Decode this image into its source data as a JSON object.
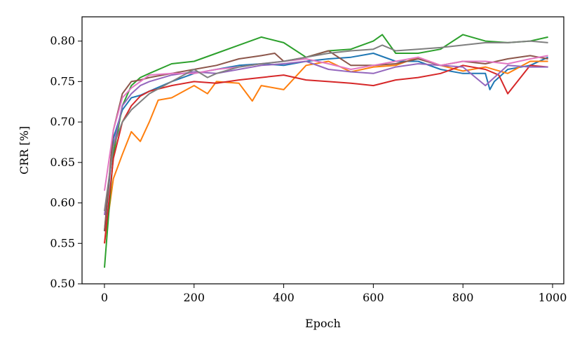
{
  "chart_data": {
    "type": "line",
    "xlabel": "Epoch",
    "ylabel": "CRR [%]",
    "xlim": [
      -50,
      1025
    ],
    "ylim": [
      0.5,
      0.83
    ],
    "xticks": [
      0,
      200,
      400,
      600,
      800,
      1000
    ],
    "yticks": [
      0.5,
      0.55,
      0.6,
      0.65,
      0.7,
      0.75,
      0.8
    ],
    "xtick_labels": [
      "0",
      "200",
      "400",
      "600",
      "800",
      "1000"
    ],
    "ytick_labels": [
      "0.50",
      "0.55",
      "0.60",
      "0.65",
      "0.70",
      "0.75",
      "0.80"
    ],
    "grid": false,
    "legend": "none",
    "series": [
      {
        "color": "#1f77b4",
        "x": [
          0,
          20,
          40,
          60,
          80,
          100,
          150,
          200,
          250,
          300,
          350,
          400,
          450,
          500,
          550,
          600,
          650,
          700,
          750,
          800,
          850,
          860,
          870,
          900,
          950,
          990
        ],
        "y": [
          0.565,
          0.68,
          0.715,
          0.73,
          0.733,
          0.738,
          0.75,
          0.76,
          0.765,
          0.77,
          0.772,
          0.77,
          0.775,
          0.778,
          0.78,
          0.785,
          0.775,
          0.775,
          0.765,
          0.76,
          0.76,
          0.74,
          0.75,
          0.765,
          0.77,
          0.78
        ]
      },
      {
        "color": "#ff7f0e",
        "x": [
          0,
          20,
          40,
          60,
          80,
          100,
          120,
          150,
          200,
          230,
          250,
          300,
          330,
          350,
          400,
          450,
          500,
          550,
          600,
          650,
          700,
          750,
          800,
          850,
          900,
          950,
          990
        ],
        "y": [
          0.55,
          0.63,
          0.66,
          0.688,
          0.676,
          0.7,
          0.727,
          0.73,
          0.745,
          0.735,
          0.75,
          0.748,
          0.726,
          0.745,
          0.74,
          0.77,
          0.775,
          0.762,
          0.768,
          0.77,
          0.78,
          0.77,
          0.763,
          0.768,
          0.76,
          0.775,
          0.775
        ]
      },
      {
        "color": "#2ca02c",
        "x": [
          0,
          20,
          40,
          60,
          80,
          100,
          150,
          200,
          250,
          300,
          350,
          400,
          450,
          500,
          550,
          600,
          620,
          650,
          700,
          750,
          800,
          850,
          900,
          950,
          990
        ],
        "y": [
          0.52,
          0.66,
          0.72,
          0.745,
          0.755,
          0.76,
          0.772,
          0.775,
          0.785,
          0.795,
          0.805,
          0.798,
          0.78,
          0.788,
          0.79,
          0.8,
          0.808,
          0.785,
          0.785,
          0.79,
          0.808,
          0.8,
          0.798,
          0.8,
          0.805
        ]
      },
      {
        "color": "#d62728",
        "x": [
          0,
          20,
          40,
          60,
          80,
          100,
          150,
          200,
          250,
          300,
          350,
          400,
          450,
          500,
          550,
          600,
          650,
          700,
          750,
          800,
          850,
          880,
          900,
          950,
          990
        ],
        "y": [
          0.55,
          0.655,
          0.7,
          0.72,
          0.732,
          0.738,
          0.745,
          0.75,
          0.748,
          0.752,
          0.755,
          0.758,
          0.752,
          0.75,
          0.748,
          0.745,
          0.752,
          0.755,
          0.76,
          0.77,
          0.765,
          0.758,
          0.735,
          0.77,
          0.768
        ]
      },
      {
        "color": "#9467bd",
        "x": [
          0,
          20,
          40,
          60,
          80,
          100,
          150,
          200,
          250,
          300,
          350,
          400,
          450,
          500,
          550,
          600,
          650,
          700,
          750,
          800,
          850,
          900,
          950,
          990
        ],
        "y": [
          0.585,
          0.67,
          0.72,
          0.735,
          0.745,
          0.75,
          0.758,
          0.762,
          0.76,
          0.765,
          0.77,
          0.772,
          0.775,
          0.765,
          0.762,
          0.76,
          0.768,
          0.772,
          0.77,
          0.768,
          0.745,
          0.77,
          0.768,
          0.768
        ]
      },
      {
        "color": "#8c564b",
        "x": [
          0,
          20,
          40,
          60,
          80,
          100,
          150,
          200,
          250,
          300,
          350,
          380,
          400,
          450,
          500,
          550,
          600,
          650,
          700,
          750,
          800,
          850,
          900,
          950,
          990
        ],
        "y": [
          0.565,
          0.69,
          0.735,
          0.75,
          0.752,
          0.755,
          0.76,
          0.765,
          0.77,
          0.778,
          0.782,
          0.785,
          0.775,
          0.78,
          0.788,
          0.77,
          0.77,
          0.772,
          0.778,
          0.77,
          0.775,
          0.772,
          0.778,
          0.782,
          0.778
        ]
      },
      {
        "color": "#e377c2",
        "x": [
          0,
          20,
          40,
          60,
          80,
          100,
          150,
          200,
          250,
          300,
          350,
          400,
          450,
          500,
          550,
          600,
          650,
          700,
          750,
          800,
          850,
          900,
          950,
          990
        ],
        "y": [
          0.615,
          0.69,
          0.73,
          0.742,
          0.75,
          0.758,
          0.76,
          0.76,
          0.765,
          0.768,
          0.772,
          0.775,
          0.778,
          0.772,
          0.765,
          0.77,
          0.775,
          0.78,
          0.77,
          0.775,
          0.775,
          0.772,
          0.778,
          0.782
        ]
      },
      {
        "color": "#7f7f7f",
        "x": [
          0,
          20,
          40,
          60,
          80,
          100,
          150,
          200,
          230,
          250,
          300,
          350,
          400,
          450,
          500,
          550,
          600,
          620,
          650,
          700,
          750,
          800,
          850,
          900,
          950,
          990
        ],
        "y": [
          0.59,
          0.67,
          0.7,
          0.715,
          0.725,
          0.735,
          0.75,
          0.765,
          0.755,
          0.76,
          0.768,
          0.772,
          0.775,
          0.78,
          0.785,
          0.788,
          0.79,
          0.795,
          0.788,
          0.79,
          0.792,
          0.795,
          0.798,
          0.798,
          0.8,
          0.798
        ]
      }
    ]
  }
}
